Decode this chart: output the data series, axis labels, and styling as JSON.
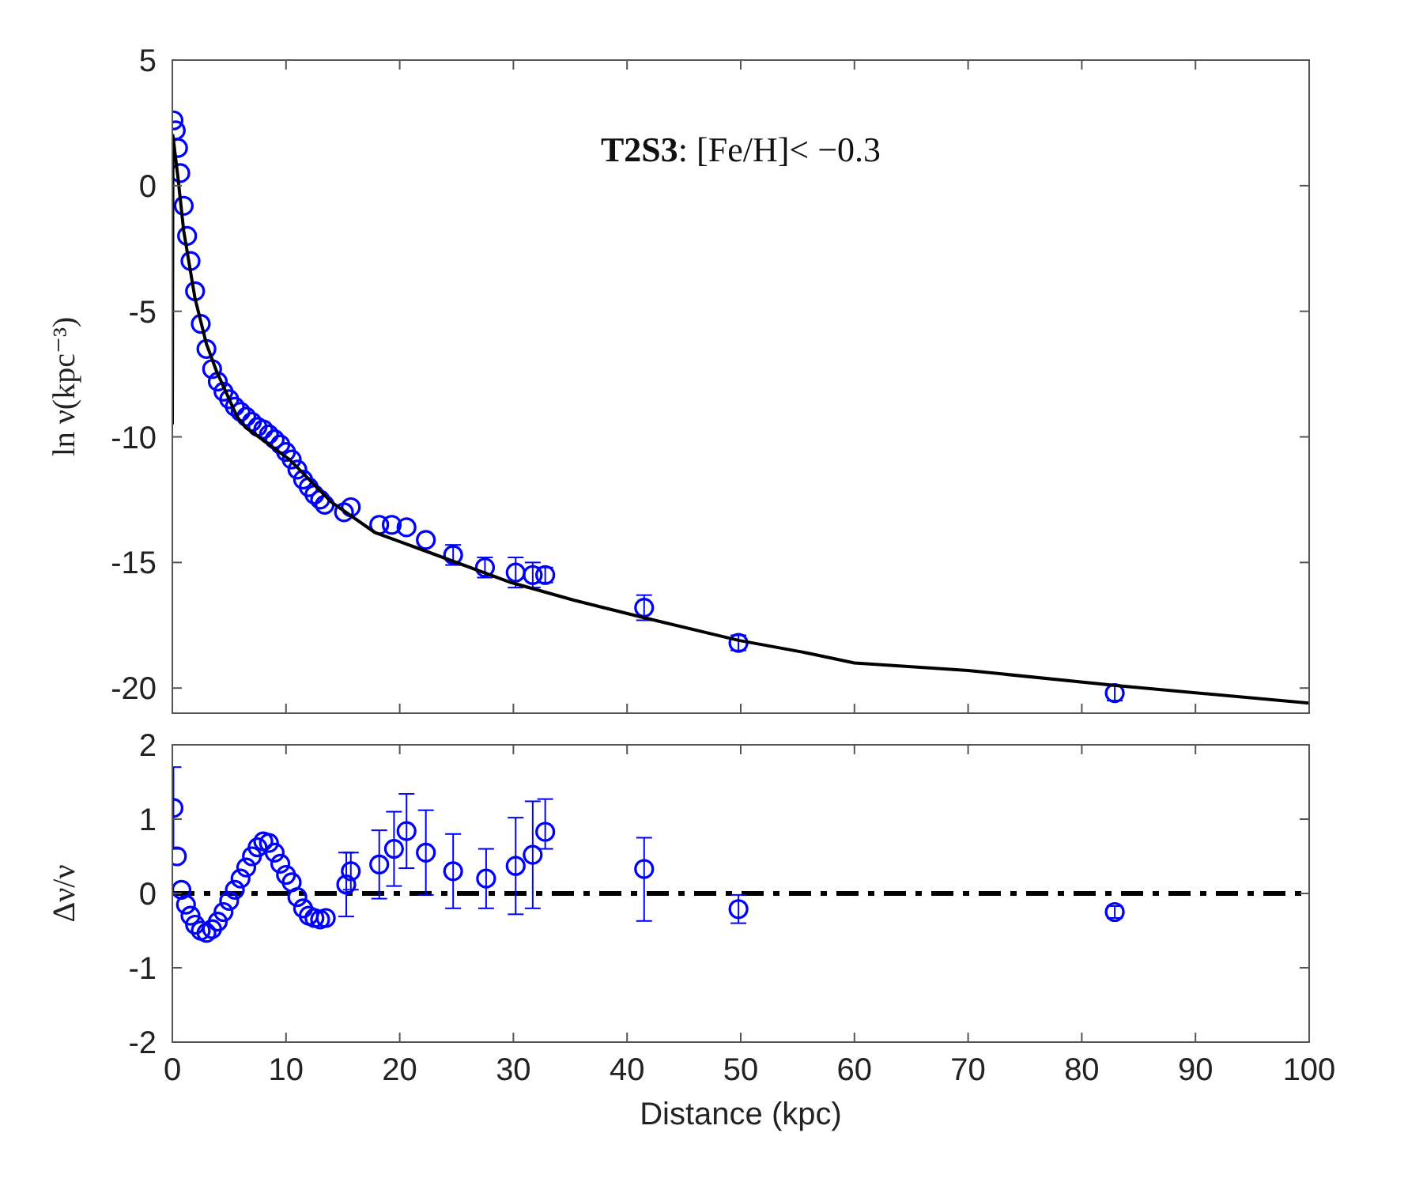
{
  "chart_data": [
    {
      "type": "scatter",
      "ylabel": "ln ν(kpc⁻³)",
      "annotations": [
        "T2S3: [Fe/H]< −0.3"
      ],
      "xlim": [
        0,
        100
      ],
      "xticks": [
        0,
        10,
        20,
        30,
        40,
        50,
        60,
        70,
        80,
        90,
        100
      ],
      "ylim": [
        -21,
        5
      ],
      "yticks": [
        -20,
        -15,
        -10,
        -5,
        0,
        5
      ],
      "tick_labels": "y",
      "grid": false,
      "marker": "circle",
      "series": [
        {
          "color": "#0000ff",
          "x": [
            0.1,
            0.3,
            0.5,
            0.7,
            1.0,
            1.3,
            1.6,
            2.0,
            2.5,
            3.0,
            3.5,
            4.0,
            4.5,
            5.0,
            5.5,
            6.0,
            6.5,
            7.0,
            7.5,
            8.0,
            8.5,
            9.0,
            9.5,
            10.0,
            10.5,
            11.0,
            11.5,
            12.0,
            12.5,
            13.0,
            13.4,
            15.1,
            15.7,
            18.2,
            19.3,
            20.6,
            22.3,
            24.7,
            27.5,
            30.2,
            31.7,
            32.8,
            41.5,
            49.8,
            82.9
          ],
          "values": [
            2.6,
            2.2,
            1.5,
            0.5,
            -0.8,
            -2.0,
            -3.0,
            -4.2,
            -5.5,
            -6.5,
            -7.3,
            -7.8,
            -8.2,
            -8.5,
            -8.8,
            -9.0,
            -9.2,
            -9.4,
            -9.6,
            -9.7,
            -9.9,
            -10.1,
            -10.3,
            -10.6,
            -10.9,
            -11.3,
            -11.7,
            -12.0,
            -12.3,
            -12.5,
            -12.7,
            -13.0,
            -12.8,
            -13.5,
            -13.5,
            -13.6,
            -14.1,
            -14.7,
            -15.2,
            -15.4,
            -15.5,
            -15.5,
            -16.8,
            -18.2,
            -20.2
          ],
          "errors": [
            null,
            null,
            null,
            null,
            null,
            null,
            null,
            null,
            null,
            null,
            null,
            null,
            null,
            null,
            null,
            null,
            null,
            null,
            null,
            null,
            null,
            null,
            null,
            null,
            null,
            null,
            null,
            null,
            null,
            null,
            null,
            null,
            null,
            null,
            null,
            null,
            null,
            0.4,
            0.4,
            0.6,
            0.5,
            0.3,
            0.5,
            0.3,
            0.3
          ]
        },
        {
          "type": "line",
          "color": "#000000",
          "marker": "none",
          "line_style": "solid",
          "x": [
            0,
            0.05,
            0.5,
            1,
            2,
            3,
            3.9,
            5.7,
            6.4,
            10.3,
            14,
            17.8,
            22,
            29.8,
            35.3,
            41.5,
            49.8,
            55.8,
            60,
            70,
            83,
            100
          ],
          "values": [
            -9.5,
            2.0,
            0.3,
            -1.8,
            -4.5,
            -6.3,
            -7.4,
            -9.2,
            -9.6,
            -10.9,
            -12.6,
            -13.8,
            -14.5,
            -15.8,
            -16.5,
            -17.2,
            -18.1,
            -18.6,
            -19.0,
            -19.3,
            -19.9,
            -20.6
          ]
        }
      ]
    },
    {
      "type": "scatter",
      "xlabel": "Distance (kpc)",
      "ylabel": "Δν/ν",
      "xlim": [
        0,
        100
      ],
      "xticks": [
        0,
        10,
        20,
        30,
        40,
        50,
        60,
        70,
        80,
        90,
        100
      ],
      "ylim": [
        -2,
        2
      ],
      "yticks": [
        -2,
        -1,
        0,
        1,
        2
      ],
      "grid": false,
      "marker": "circle",
      "ref_lines": [
        {
          "axis": "y",
          "value": 0,
          "color": "#000000",
          "line_style": "dashed"
        }
      ],
      "series": [
        {
          "color": "#0000ff",
          "x": [
            0.1,
            0.4,
            0.8,
            1.2,
            1.6,
            2.0,
            2.5,
            3.0,
            3.5,
            4.0,
            4.5,
            5.0,
            5.5,
            6.0,
            6.5,
            7.0,
            7.5,
            8.0,
            8.5,
            9.0,
            9.5,
            10.0,
            10.5,
            11.0,
            11.5,
            12.0,
            12.5,
            13.0,
            13.5,
            15.3,
            15.7,
            18.2,
            19.5,
            20.6,
            22.3,
            24.7,
            27.6,
            30.2,
            31.7,
            32.8,
            41.5,
            49.8,
            82.9
          ],
          "values": [
            1.15,
            0.5,
            0.05,
            -0.15,
            -0.3,
            -0.42,
            -0.5,
            -0.53,
            -0.48,
            -0.38,
            -0.25,
            -0.1,
            0.05,
            0.2,
            0.35,
            0.5,
            0.62,
            0.7,
            0.68,
            0.55,
            0.4,
            0.25,
            0.15,
            -0.05,
            -0.2,
            -0.3,
            -0.33,
            -0.35,
            -0.33,
            0.12,
            0.3,
            0.39,
            0.6,
            0.84,
            0.55,
            0.3,
            0.2,
            0.37,
            0.52,
            0.83,
            0.33,
            -0.21,
            -0.25
          ],
          "errors": [
            0.55,
            null,
            null,
            null,
            null,
            null,
            null,
            null,
            null,
            null,
            null,
            null,
            null,
            null,
            null,
            null,
            null,
            null,
            null,
            null,
            null,
            null,
            null,
            null,
            null,
            null,
            null,
            null,
            null,
            0.43,
            0.25,
            0.46,
            0.5,
            0.5,
            0.57,
            0.5,
            0.4,
            0.65,
            0.72,
            [
              0.6,
              1.27
            ],
            [
              -0.37,
              0.75
            ],
            0.19,
            0.08
          ]
        }
      ]
    }
  ]
}
